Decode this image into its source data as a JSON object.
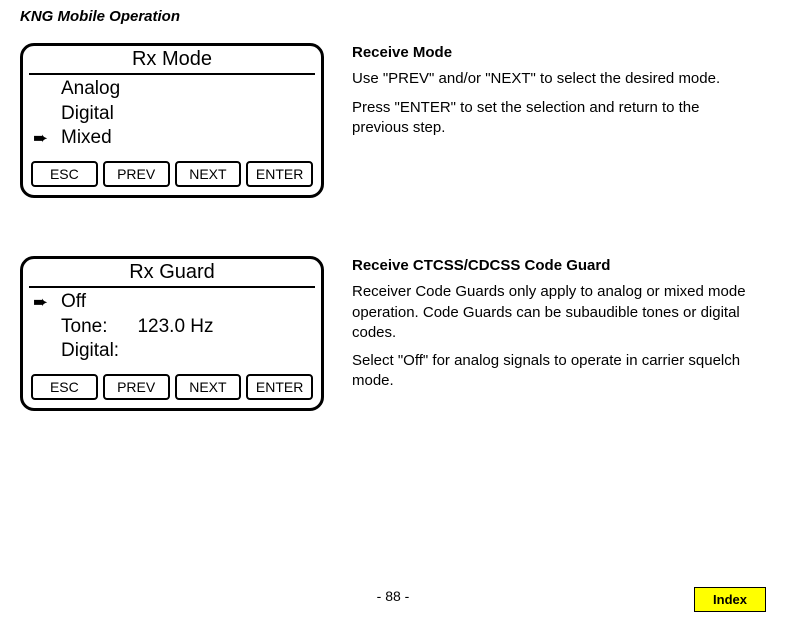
{
  "header": "KNG Mobile Operation",
  "section1": {
    "box": {
      "title": "Rx Mode",
      "lines": [
        {
          "arrow": "",
          "label": "Analog",
          "value": ""
        },
        {
          "arrow": "",
          "label": "Digital",
          "value": ""
        },
        {
          "arrow": "➨",
          "label": "Mixed",
          "value": ""
        }
      ],
      "buttons": [
        "ESC",
        "PREV",
        "NEXT",
        "ENTER"
      ]
    },
    "desc": {
      "head": "Receive Mode",
      "p1": "Use \"PREV\" and/or \"NEXT\" to select the desired mode.",
      "p2": "Press \"ENTER\" to set the selection and return to the previous step."
    }
  },
  "section2": {
    "box": {
      "title": "Rx Guard",
      "lines": [
        {
          "arrow": "➨",
          "label": "Off",
          "value": ""
        },
        {
          "arrow": "",
          "label": "Tone:",
          "value": "123.0 Hz"
        },
        {
          "arrow": "",
          "label": "Digital:",
          "value": ""
        }
      ],
      "buttons": [
        "ESC",
        "PREV",
        "NEXT",
        "ENTER"
      ]
    },
    "desc": {
      "head": "Receive CTCSS/CDCSS Code Guard",
      "p1": "Receiver Code Guards only apply to analog or mixed mode operation. Code Guards can be subaudible tones or digital codes.",
      "p2": "Select \"Off\" for analog signals to operate in carrier squelch mode."
    }
  },
  "pageNum": "- 88 -",
  "indexLabel": "Index"
}
